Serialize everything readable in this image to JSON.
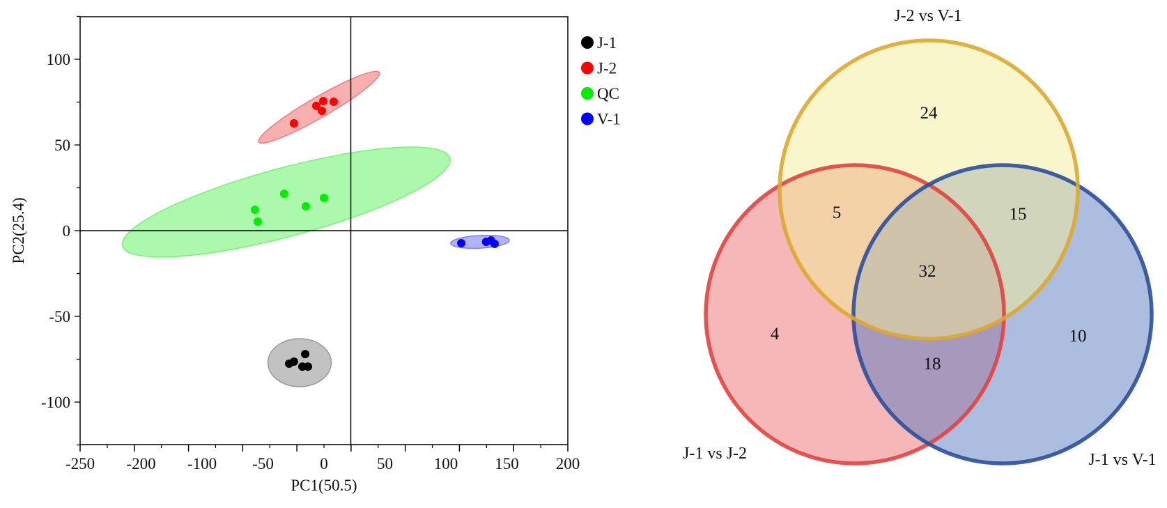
{
  "chart_data": [
    {
      "type": "scatter",
      "title": "",
      "xlabel": "PC1(50.5)",
      "ylabel": "PC2(25.4)",
      "x_tick_labels": [
        "-250",
        "-200",
        "-100",
        "-50",
        "0",
        "50",
        "100",
        "150",
        "200"
      ],
      "y_ticks": [
        100,
        50,
        0,
        -50,
        -100
      ],
      "y_tick_labels": [
        "100",
        "50",
        "0",
        "-50",
        "-100"
      ],
      "ylim": [
        -125,
        125
      ],
      "reference_lines": {
        "x": 22,
        "y": 0
      },
      "legend_position": "top-right",
      "series": [
        {
          "name": "J-1",
          "color": "#000000",
          "ellipse_fill": "#9a9a9a",
          "points": [
            [
              -28.6,
              -77.6
            ],
            [
              -24.6,
              -76.4
            ],
            [
              -15.4,
              -72
            ],
            [
              -17.7,
              -79.3
            ],
            [
              -13.1,
              -79.3
            ]
          ],
          "ellipse": {
            "cx": -20,
            "cy": -77,
            "rx": 26,
            "ry": 14,
            "angle": 0
          }
        },
        {
          "name": "J-2",
          "color": "#ff0000",
          "ellipse_fill": "#f47a7a",
          "points": [
            [
              -24.6,
              62.6
            ],
            [
              -6.3,
              72.8
            ],
            [
              -1.7,
              69.9
            ],
            [
              -0.6,
              75.6
            ],
            [
              8,
              75.2
            ]
          ],
          "ellipse": {
            "cx": -4,
            "cy": 72,
            "rx": 57,
            "ry": 6,
            "angle": -30
          }
        },
        {
          "name": "QC",
          "color": "#00ee00",
          "ellipse_fill": "#74f474",
          "points": [
            [
              -56.6,
              12.2
            ],
            [
              -54.3,
              5.3
            ],
            [
              -32.6,
              21.5
            ],
            [
              -14.9,
              14.2
            ],
            [
              0,
              19.1
            ]
          ],
          "ellipse": {
            "cx": -31,
            "cy": 16.7,
            "rx": 139,
            "ry": 20,
            "angle": -15
          }
        },
        {
          "name": "V-1",
          "color": "#0000ff",
          "ellipse_fill": "#7f7ff4",
          "points": [
            [
              112.6,
              -7.3
            ],
            [
              133,
              -6.5
            ],
            [
              137,
              -5.7
            ],
            [
              140,
              -7.7
            ]
          ],
          "ellipse": {
            "cx": 128,
            "cy": -6.5,
            "rx": 24,
            "ry": 3.7,
            "angle": -3
          }
        }
      ]
    },
    {
      "type": "venn",
      "sets": [
        {
          "name": "J-2 vs V-1",
          "fill": "#f3ee9a",
          "stroke": "#dba92f"
        },
        {
          "name": "J-1 vs J-2",
          "fill": "#ec6f6f",
          "stroke": "#e2433f"
        },
        {
          "name": "J-1 vs V-1",
          "fill": "#5a7cc0",
          "stroke": "#2b4f9c"
        }
      ],
      "regions": {
        "J-2 vs V-1 only": 24,
        "J-1 vs J-2 only": 4,
        "J-1 vs V-1 only": 10,
        "J-1 vs J-2 & J-2 vs V-1": 5,
        "J-2 vs V-1 & J-1 vs V-1": 15,
        "J-1 vs J-2 & J-1 vs V-1": 18,
        "all": 32
      }
    }
  ]
}
